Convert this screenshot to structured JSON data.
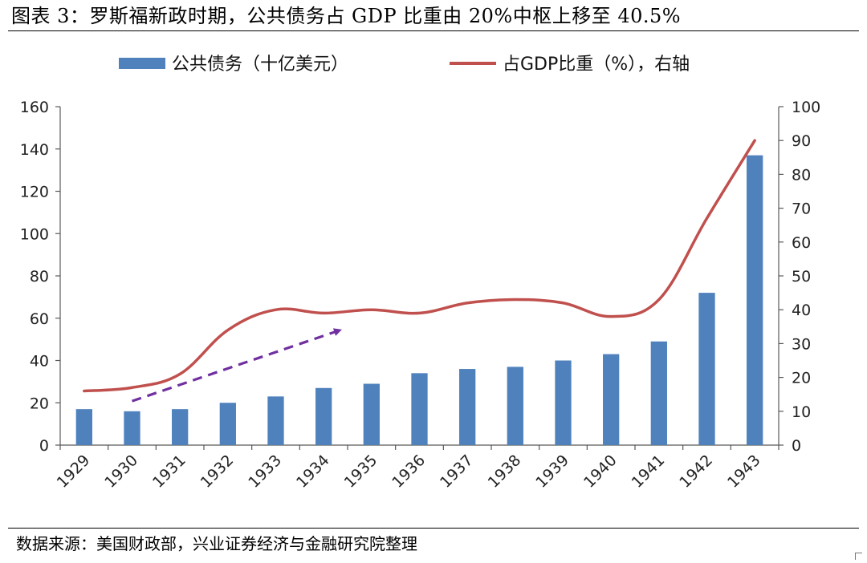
{
  "figure": {
    "title": "图表 3：罗斯福新政时期，公共债务占 GDP 比重由 20%中枢上移至 40.5%",
    "source": "数据来源：美国财政部，兴业证券经济与金融研究院整理"
  },
  "colors": {
    "bar": "#4F81BD",
    "line": "#C0504D",
    "arrow": "#7030A0",
    "axis": "#595959"
  },
  "chart_data": {
    "type": "bar",
    "title": "",
    "categories": [
      "1929",
      "1930",
      "1931",
      "1932",
      "1933",
      "1934",
      "1935",
      "1936",
      "1937",
      "1938",
      "1939",
      "1940",
      "1941",
      "1942",
      "1943"
    ],
    "series": [
      {
        "name": "公共债务（十亿美元）",
        "type": "bar",
        "axis": "left",
        "values": [
          17,
          16,
          17,
          20,
          23,
          27,
          29,
          34,
          36,
          37,
          40,
          43,
          49,
          72,
          137
        ]
      },
      {
        "name": "占GDP比重（%），右轴",
        "type": "line",
        "axis": "right",
        "smooth": true,
        "values": [
          16,
          17,
          21,
          34,
          40,
          39,
          40,
          39,
          42,
          43,
          42,
          38,
          43,
          67,
          90
        ]
      }
    ],
    "y_left": {
      "range": [
        0,
        160
      ],
      "ticks": [
        "0",
        "20",
        "40",
        "60",
        "80",
        "100",
        "120",
        "140",
        "160"
      ]
    },
    "y_right": {
      "range": [
        0,
        100
      ],
      "ticks": [
        "0",
        "10",
        "20",
        "30",
        "40",
        "50",
        "60",
        "70",
        "80",
        "90",
        "100"
      ]
    },
    "x_tick_rotation": "-45deg",
    "grid": false,
    "legend": "top",
    "annotations": [
      {
        "type": "dashed-arrow",
        "from": {
          "x": "1930",
          "y_right": 13
        },
        "to": {
          "x": "1934",
          "y_right": 34
        }
      }
    ]
  }
}
